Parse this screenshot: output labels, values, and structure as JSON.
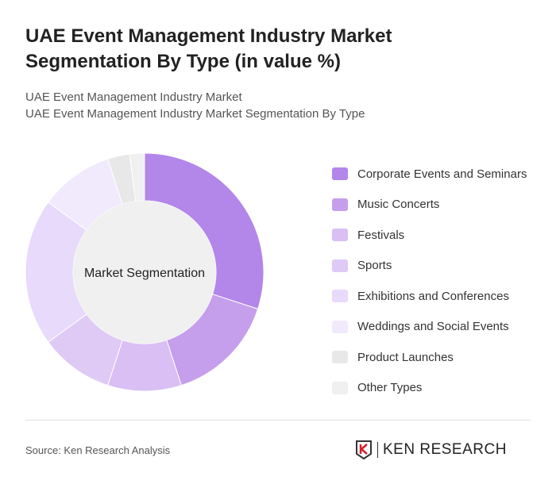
{
  "title": "UAE Event Management Industry Market Segmentation By Type (in value %)",
  "subtitle1": "UAE Event Management Industry Market",
  "subtitle2": "UAE Event Management Industry Market Segmentation By Type",
  "source": "Source: Ken Research Analysis",
  "logo_text": "KEN RESEARCH",
  "chart_data": {
    "type": "pie",
    "donut": true,
    "center_label": "Market Segmentation",
    "legend_position": "right",
    "categories": [
      "Corporate Events and Seminars",
      "Music Concerts",
      "Festivals",
      "Sports",
      "Exhibitions and Conferences",
      "Weddings and Social Events",
      "Product Launches",
      "Other Types"
    ],
    "values": [
      30,
      15,
      10,
      10,
      20,
      10,
      3,
      2
    ],
    "colors": [
      "#b386ea",
      "#c59eec",
      "#d9bff4",
      "#dfcaf5",
      "#e7dafa",
      "#f1eafc",
      "#e8e8e8",
      "#f0f0f0"
    ]
  }
}
